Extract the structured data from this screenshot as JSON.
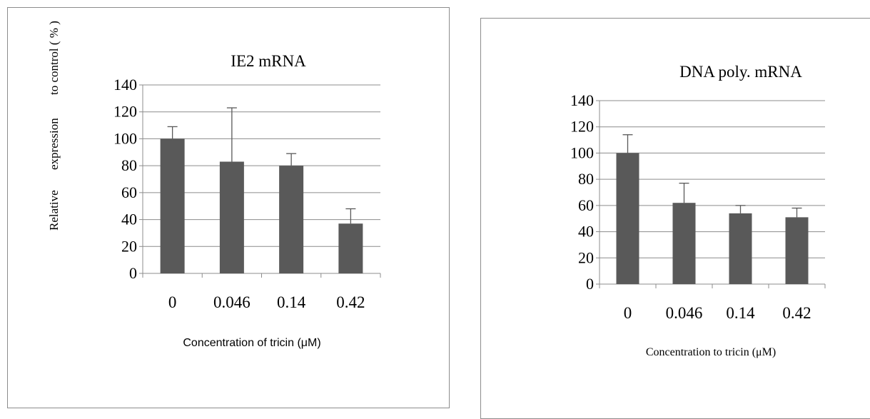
{
  "colors": {
    "bar": "#595959",
    "grid": "#8c8c8c",
    "text": "#000000"
  },
  "chart_data": [
    {
      "type": "bar",
      "title": "IE2 mRNA",
      "categories": [
        "0",
        "0.046",
        "0.14",
        "0.42"
      ],
      "series": [
        {
          "values": [
            100,
            83,
            80,
            37
          ],
          "error_upper": [
            9,
            40,
            9,
            11
          ]
        }
      ],
      "ylabel_parts": [
        "Relative",
        "expression",
        "to control ( % )"
      ],
      "xlabel": "Concentration of tricin (μM)",
      "ylim": [
        0,
        140
      ],
      "yticks": [
        "0",
        "20",
        "40",
        "60",
        "80",
        "100",
        "120",
        "140"
      ],
      "grid": true,
      "legend": "none"
    },
    {
      "type": "bar",
      "title": "DNA poly. mRNA",
      "categories": [
        "0",
        "0.046",
        "0.14",
        "0.42"
      ],
      "series": [
        {
          "values": [
            100,
            62,
            54,
            51
          ],
          "error_upper": [
            14,
            15,
            6,
            7
          ]
        }
      ],
      "xlabel": "Concentration to tricin (μM)",
      "ylim": [
        0,
        140
      ],
      "yticks": [
        "0",
        "20",
        "40",
        "60",
        "80",
        "100",
        "120",
        "140"
      ],
      "grid": true,
      "legend": "none"
    }
  ]
}
